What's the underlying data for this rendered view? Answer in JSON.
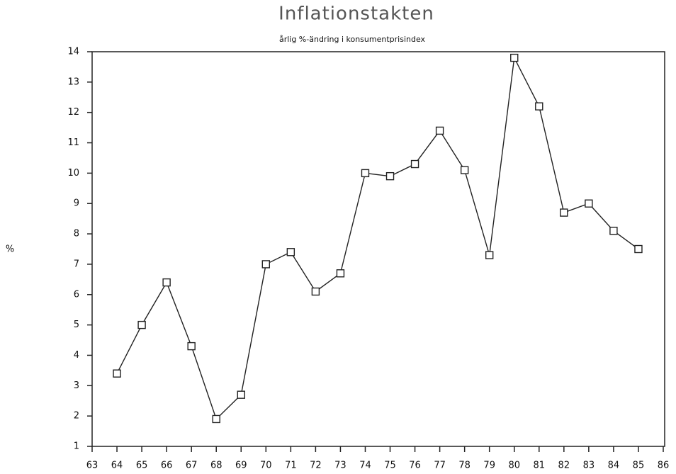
{
  "chart_data": {
    "type": "line",
    "title": "Inflationstakten",
    "subtitle": "årlig %-ändring i konsumentprisindex",
    "y_label": "%",
    "x": [
      64,
      65,
      66,
      67,
      68,
      69,
      70,
      71,
      72,
      73,
      74,
      75,
      76,
      77,
      78,
      79,
      80,
      81,
      82,
      83,
      84,
      85
    ],
    "series": [
      {
        "name": "Inflationstakten",
        "color": "#222222",
        "values": [
          3.4,
          5.0,
          6.4,
          4.3,
          1.9,
          2.7,
          7.0,
          7.4,
          6.1,
          6.7,
          10.0,
          9.9,
          10.3,
          11.4,
          10.1,
          7.3,
          13.8,
          12.2,
          8.7,
          9.0,
          8.1,
          7.5
        ]
      }
    ],
    "xlim": [
      63,
      86
    ],
    "xticks": [
      63,
      64,
      65,
      66,
      67,
      68,
      69,
      70,
      71,
      72,
      73,
      74,
      75,
      76,
      77,
      78,
      79,
      80,
      81,
      82,
      83,
      84,
      85,
      86
    ],
    "ylim": [
      1,
      14
    ],
    "yticks": [
      1,
      2,
      3,
      4,
      5,
      6,
      7,
      8,
      9,
      10,
      11,
      12,
      13,
      14
    ],
    "grid": false
  }
}
